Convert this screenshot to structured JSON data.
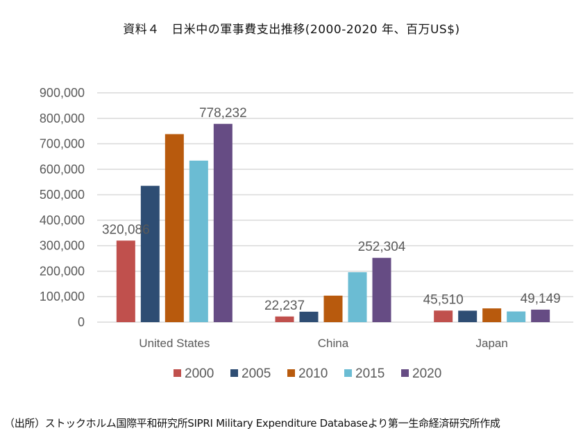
{
  "chart_data": {
    "type": "bar",
    "title": "資料４　日米中の軍事費支出推移(2000-2020 年、百万US$)",
    "source": "（出所）ストックホルム国際平和研究所SIPRI Military Expenditure Databaseより第一生命経済研究所作成",
    "xlabel": "",
    "ylabel": "",
    "categories": [
      "United States",
      "China",
      "Japan"
    ],
    "series": [
      {
        "name": "2000",
        "color": "#C0504D",
        "values": [
          320086,
          22237,
          45510
        ]
      },
      {
        "name": "2005",
        "color": "#2E4D73",
        "values": [
          535000,
          41000,
          45000
        ]
      },
      {
        "name": "2010",
        "color": "#B85A0D",
        "values": [
          738000,
          104000,
          54000
        ]
      },
      {
        "name": "2015",
        "color": "#6BBCD3",
        "values": [
          634000,
          196000,
          42000
        ]
      },
      {
        "name": "2020",
        "color": "#664C84",
        "values": [
          778232,
          252304,
          49149
        ]
      }
    ],
    "data_labels": [
      {
        "series": "2000",
        "category": "United States",
        "text": "320,086"
      },
      {
        "series": "2020",
        "category": "United States",
        "text": "778,232"
      },
      {
        "series": "2000",
        "category": "China",
        "text": "22,237"
      },
      {
        "series": "2020",
        "category": "China",
        "text": "252,304"
      },
      {
        "series": "2000",
        "category": "Japan",
        "text": "45,510"
      },
      {
        "series": "2020",
        "category": "Japan",
        "text": "49,149"
      }
    ],
    "yticks": [
      "0",
      "100,000",
      "200,000",
      "300,000",
      "400,000",
      "500,000",
      "600,000",
      "700,000",
      "800,000",
      "900,000"
    ],
    "ylim": [
      0,
      900000
    ],
    "grid": true,
    "legend_position": "bottom"
  }
}
